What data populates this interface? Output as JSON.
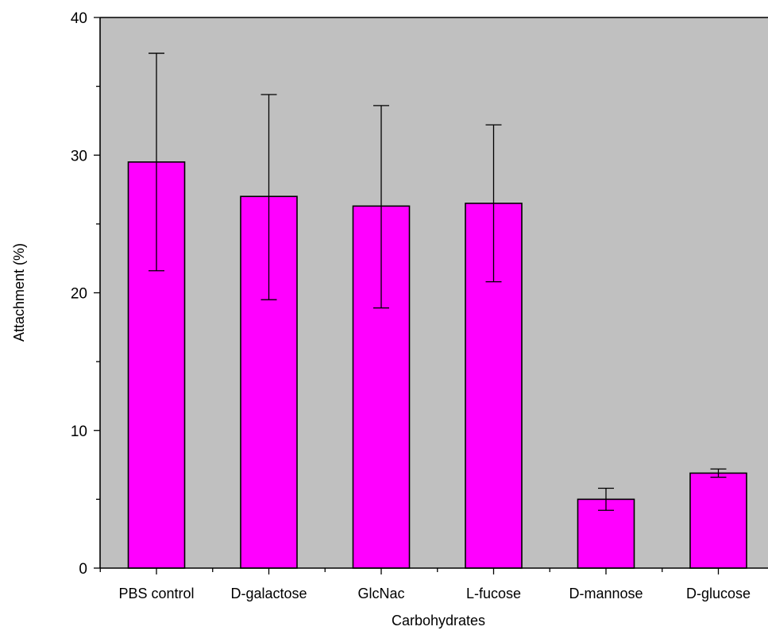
{
  "chart_data": {
    "type": "bar",
    "xlabel": "Carbohydrates",
    "ylabel": "Attachment (%)",
    "categories": [
      "PBS control",
      "D-galactose",
      "GlcNac",
      "L-fucose",
      "D-mannose",
      "D-glucose"
    ],
    "values": [
      29.5,
      27.0,
      26.3,
      26.5,
      5.0,
      6.9
    ],
    "error_low": [
      21.6,
      19.5,
      18.9,
      20.8,
      4.2,
      6.6
    ],
    "error_high": [
      37.4,
      34.4,
      33.6,
      32.2,
      5.8,
      7.2
    ],
    "ylim": [
      0,
      40
    ],
    "yticks": [
      "0",
      "10",
      "20",
      "30",
      "40"
    ],
    "grid": false,
    "colors": {
      "bar_fill": "#ff00ff",
      "plot_background": "#c0c0c0",
      "axis": "#000000"
    }
  }
}
